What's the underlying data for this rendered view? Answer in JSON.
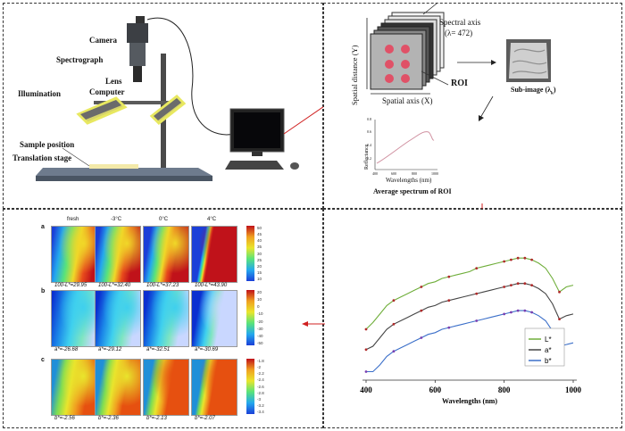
{
  "setup": {
    "camera": "Camera",
    "spectrograph": "Spectrograph",
    "lens": "Lens",
    "computer": "Computer",
    "illumination": "Illumination",
    "sample_position": "Sample position",
    "translation_stage": "Translation stage"
  },
  "cube": {
    "spectral_axis": "Spectral axis",
    "lambda": "(λ= 472)",
    "spatial_y": "Spatial distance (Y)",
    "spatial_x": "Spatial axis (X)",
    "roi": "ROI",
    "sub_image": "Sub-image (λ",
    "sub_image_sub": "k",
    "sub_image_end": ")"
  },
  "small_spectrum": {
    "ylabel": "Reflectance",
    "xlabel": "Wavelengths (nm)",
    "caption": "Average spectrum of ROI",
    "yticks": [
      "0.8",
      "0.6",
      "0.4",
      "0.2"
    ],
    "xticks": [
      "400",
      "600",
      "800",
      "1000"
    ]
  },
  "maps": {
    "columns": [
      "fresh",
      "-3°C",
      "0°C",
      "4°C"
    ],
    "rows": [
      {
        "letter": "a",
        "captions": [
          "100-L*=29.95",
          "100-L*=32.40",
          "100-L*=37.23",
          "100-L*=43.90"
        ],
        "ticks": [
          "50",
          "45",
          "40",
          "35",
          "30",
          "25",
          "20",
          "15",
          "10"
        ]
      },
      {
        "letter": "b",
        "captions": [
          "a*=-26.68",
          "a*=-29.12",
          "a*=-32.51",
          "a*=-30.69"
        ],
        "ticks": [
          "20",
          "10",
          "0",
          "-10",
          "-20",
          "-30",
          "-40",
          "-50"
        ]
      },
      {
        "letter": "c",
        "captions": [
          "b*=-2.56",
          "b*=-2.36",
          "b*=-2.13",
          "b*=-2.07"
        ],
        "ticks": [
          "-1.8",
          "-2",
          "-2.2",
          "-2.4",
          "-2.6",
          "-2.8",
          "-3",
          "-3.2",
          "-3.4"
        ]
      }
    ]
  },
  "chart_data": {
    "type": "line",
    "xlabel": "Wavelengths (nm)",
    "ylabel": "",
    "xlim": [
      400,
      1000
    ],
    "xticks": [
      400,
      600,
      800,
      1000
    ],
    "series": [
      {
        "name": "L*",
        "color": "#6fae3a",
        "x": [
          400,
          420,
          440,
          460,
          480,
          500,
          520,
          540,
          560,
          580,
          600,
          620,
          640,
          660,
          680,
          700,
          720,
          740,
          760,
          780,
          800,
          820,
          840,
          860,
          880,
          900,
          920,
          940,
          960,
          980,
          1000
        ],
        "y": [
          0.3,
          0.34,
          0.39,
          0.44,
          0.47,
          0.49,
          0.51,
          0.53,
          0.55,
          0.57,
          0.58,
          0.6,
          0.61,
          0.62,
          0.63,
          0.64,
          0.66,
          0.67,
          0.68,
          0.69,
          0.7,
          0.71,
          0.72,
          0.72,
          0.71,
          0.69,
          0.66,
          0.6,
          0.52,
          0.55,
          0.56
        ]
      },
      {
        "name": "a*",
        "color": "#444444",
        "x": [
          400,
          420,
          440,
          460,
          480,
          500,
          520,
          540,
          560,
          580,
          600,
          620,
          640,
          660,
          680,
          700,
          720,
          740,
          760,
          780,
          800,
          820,
          840,
          860,
          880,
          900,
          920,
          940,
          960,
          980,
          1000
        ],
        "y": [
          0.18,
          0.2,
          0.25,
          0.3,
          0.33,
          0.35,
          0.37,
          0.39,
          0.41,
          0.43,
          0.44,
          0.46,
          0.47,
          0.48,
          0.49,
          0.5,
          0.51,
          0.52,
          0.53,
          0.54,
          0.55,
          0.56,
          0.57,
          0.57,
          0.56,
          0.54,
          0.51,
          0.45,
          0.36,
          0.38,
          0.39
        ]
      },
      {
        "name": "b*",
        "color": "#3b6fc9",
        "x": [
          400,
          420,
          440,
          460,
          480,
          500,
          520,
          540,
          560,
          580,
          600,
          620,
          640,
          660,
          680,
          700,
          720,
          740,
          760,
          780,
          800,
          820,
          840,
          860,
          880,
          900,
          920,
          940,
          960,
          980,
          1000
        ],
        "y": [
          0.05,
          0.05,
          0.09,
          0.14,
          0.17,
          0.19,
          0.21,
          0.23,
          0.25,
          0.27,
          0.28,
          0.3,
          0.31,
          0.32,
          0.33,
          0.34,
          0.35,
          0.36,
          0.37,
          0.38,
          0.39,
          0.4,
          0.41,
          0.41,
          0.4,
          0.38,
          0.35,
          0.29,
          0.2,
          0.21,
          0.22
        ]
      }
    ]
  }
}
